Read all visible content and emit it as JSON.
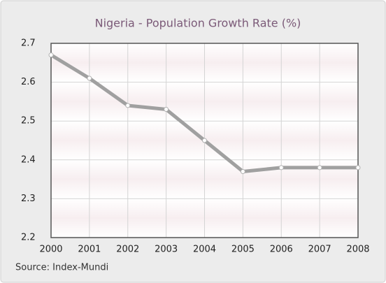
{
  "chart_data": {
    "type": "line",
    "title": "Nigeria - Population Growth Rate (%)",
    "source": "Source: Index-Mundi",
    "categories": [
      "2000",
      "2001",
      "2002",
      "2003",
      "2004",
      "2005",
      "2006",
      "2007",
      "2008"
    ],
    "series": [
      {
        "name": "Population Growth Rate",
        "color": "#a0a0a0",
        "values": [
          2.67,
          2.61,
          2.54,
          2.53,
          2.45,
          2.37,
          2.38,
          2.38,
          2.38
        ]
      }
    ],
    "ylim": [
      2.2,
      2.7
    ],
    "yticks": [
      2.2,
      2.3,
      2.4,
      2.5,
      2.6,
      2.7
    ],
    "grid": true
  }
}
